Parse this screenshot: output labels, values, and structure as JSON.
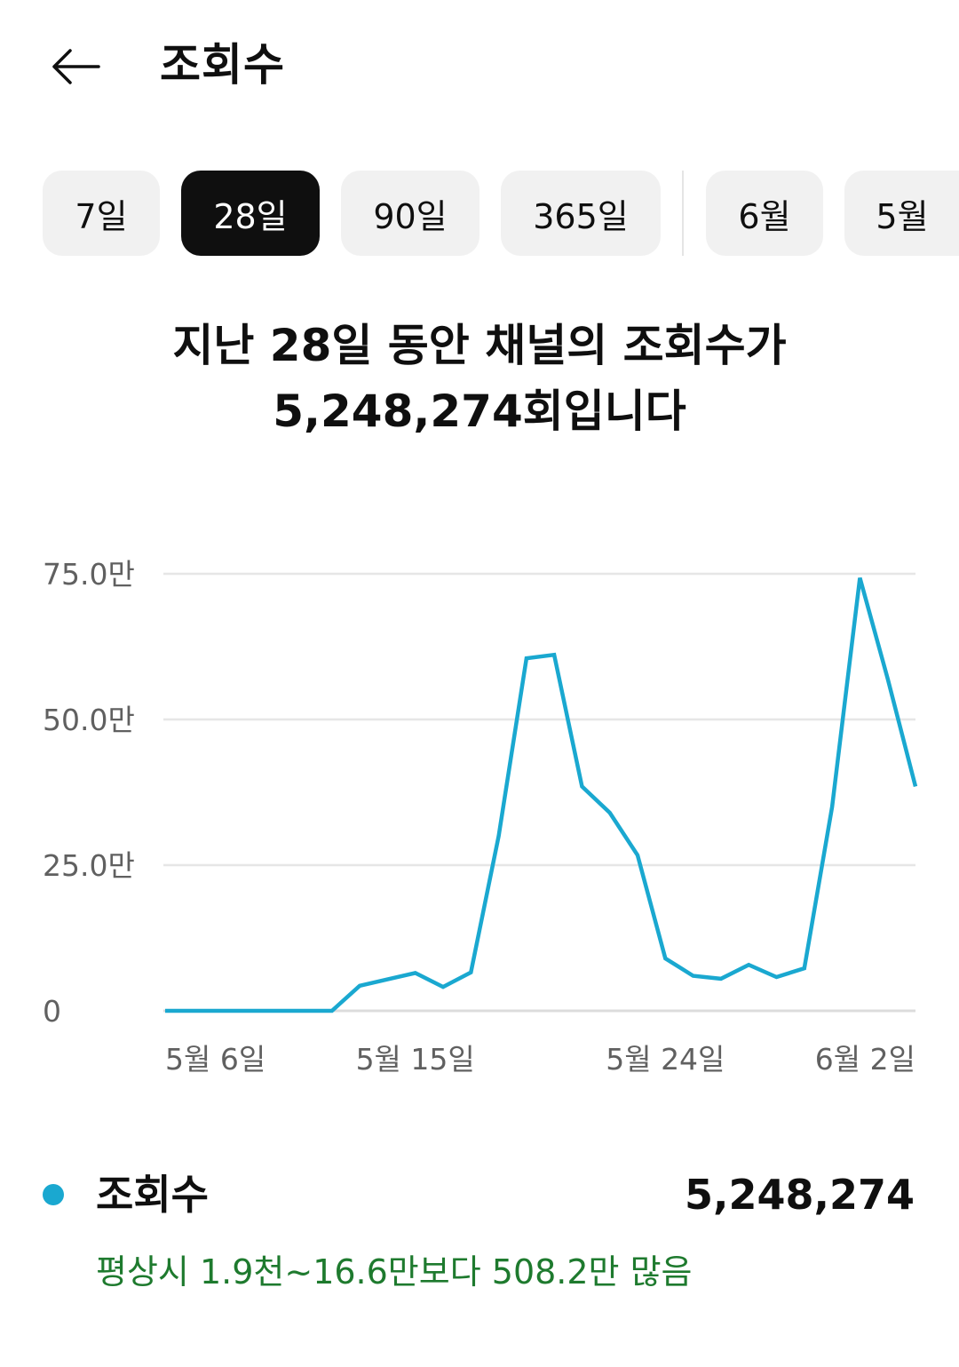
{
  "header": {
    "title": "조회수",
    "back_icon": "arrow-left-icon"
  },
  "chips": [
    {
      "label": "7일",
      "active": false
    },
    {
      "label": "28일",
      "active": true
    },
    {
      "label": "90일",
      "active": false
    },
    {
      "label": "365일",
      "active": false
    },
    {
      "label": "6월",
      "active": false
    },
    {
      "label": "5월",
      "active": false
    }
  ],
  "headline": {
    "line1": "지난 28일 동안 채널의 조회수가",
    "line2": "5,248,274회입니다"
  },
  "chart_data": {
    "type": "line",
    "title": "",
    "xlabel": "",
    "ylabel": "",
    "ylim": [
      0,
      750000
    ],
    "y_ticks": [
      {
        "value": 0,
        "label": "0"
      },
      {
        "value": 250000,
        "label": "25.0만"
      },
      {
        "value": 500000,
        "label": "50.0만"
      },
      {
        "value": 750000,
        "label": "75.0만"
      }
    ],
    "x_ticks": [
      {
        "day": 1,
        "label": "5월 6일"
      },
      {
        "day": 10,
        "label": "5월 15일"
      },
      {
        "day": 19,
        "label": "5월 24일"
      },
      {
        "day": 28,
        "label": "6월 2일"
      }
    ],
    "grid": true,
    "color": "#1aa8d0",
    "series": [
      {
        "name": "조회수",
        "x": [
          1,
          2,
          3,
          4,
          5,
          6,
          7,
          8,
          9,
          10,
          11,
          12,
          13,
          14,
          15,
          16,
          17,
          18,
          19,
          20,
          21,
          22,
          23,
          24,
          25,
          26,
          27,
          28
        ],
        "values": [
          0,
          0,
          0,
          0,
          0,
          0,
          0,
          43000,
          54000,
          65000,
          41000,
          66000,
          300000,
          605000,
          611000,
          385000,
          340000,
          267000,
          90000,
          60000,
          55000,
          79000,
          58000,
          73000,
          350000,
          743000,
          570000,
          385000
        ]
      }
    ]
  },
  "legend": {
    "label": "조회수",
    "value": "5,248,274",
    "color": "#1aa8d0"
  },
  "comparison": {
    "text": "평상시 1.9천~16.6만보다 508.2만 많음",
    "color": "#1e7a2e"
  }
}
